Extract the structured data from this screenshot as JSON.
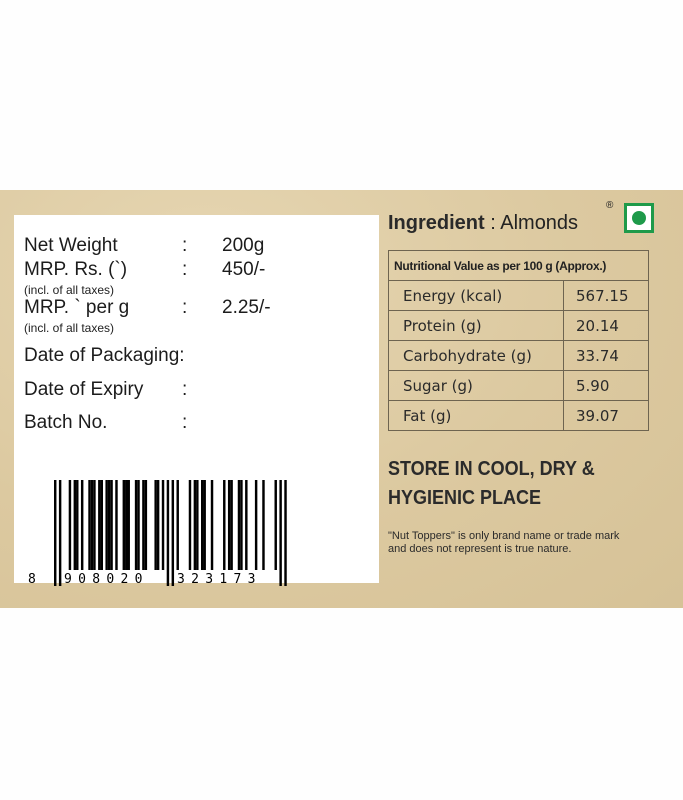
{
  "label": {
    "net_weight_label": "Net Weight",
    "net_weight_value": "200g",
    "mrp_label": "MRP. Rs. (`)",
    "mrp_value": "450/-",
    "mrp_note": "(incl. of all taxes)",
    "mrp_per_g_label": "MRP. ` per g",
    "mrp_per_g_value": "2.25/-",
    "mrp_per_g_note": "(incl. of all taxes)",
    "packaging_label": "Date of Packaging:",
    "expiry_label": "Date of Expiry",
    "batch_label": "Batch No.",
    "colon": ":",
    "barcode": {
      "first": "8",
      "left": "908020",
      "right": "323173"
    }
  },
  "ingredient": {
    "label": "Ingredient",
    "value": ": Almonds",
    "registered": "®",
    "veg_mark_color": "#1e9a4a"
  },
  "nutrition": {
    "header": "Nutritional Value as per 100 g (Approx.)",
    "rows": [
      {
        "name": "Energy (kcal)",
        "value": "567.15"
      },
      {
        "name": "Protein (g)",
        "value": "20.14"
      },
      {
        "name": "Carbohydrate (g)",
        "value": "33.74"
      },
      {
        "name": "Sugar (g)",
        "value": "5.90"
      },
      {
        "name": "Fat (g)",
        "value": "39.07"
      }
    ]
  },
  "storage": {
    "line1": "STORE IN COOL, DRY &",
    "line2": "HYGIENIC PLACE"
  },
  "disclaimer": {
    "line1": "\"Nut Toppers\" is only brand name or trade mark",
    "line2": "and does not represent is true nature."
  }
}
